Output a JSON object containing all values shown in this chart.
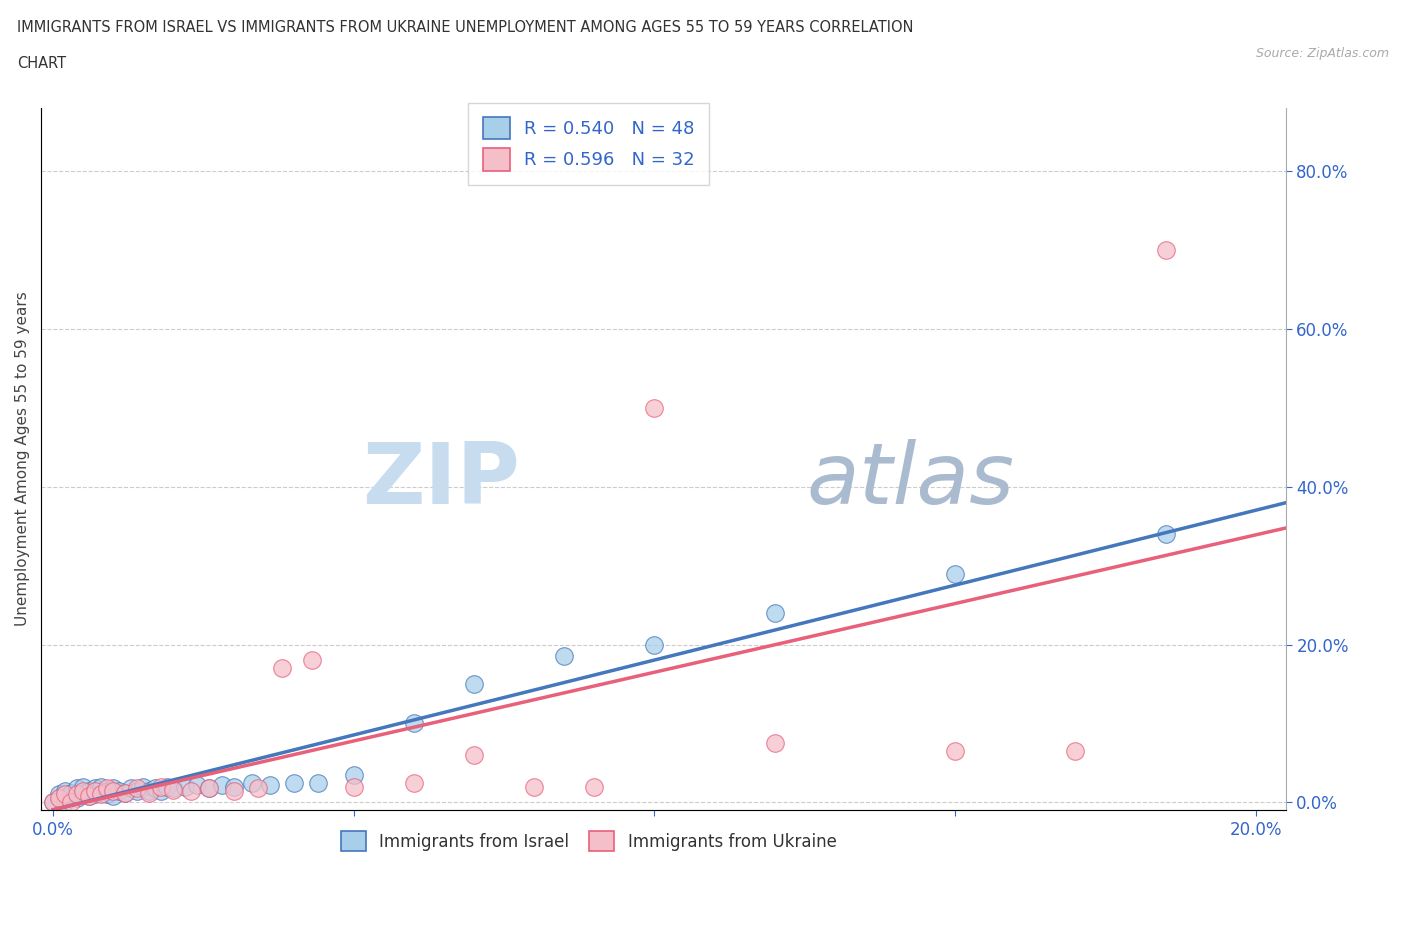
{
  "title_line1": "IMMIGRANTS FROM ISRAEL VS IMMIGRANTS FROM UKRAINE UNEMPLOYMENT AMONG AGES 55 TO 59 YEARS CORRELATION",
  "title_line2": "CHART",
  "source_text": "Source: ZipAtlas.com",
  "ylabel": "Unemployment Among Ages 55 to 59 years",
  "xlim": [
    -0.002,
    0.205
  ],
  "ylim": [
    -0.01,
    0.88
  ],
  "color_israel": "#A8CFEA",
  "color_ukraine": "#F5BFCA",
  "color_line_israel": "#4477BB",
  "color_line_ukraine": "#E8607A",
  "color_text_blue": "#3366CC",
  "color_text_pink": "#CC3366",
  "r_israel": 0.54,
  "n_israel": 48,
  "r_ukraine": 0.596,
  "n_ukraine": 32,
  "watermark_zip": "ZIP",
  "watermark_atlas": "atlas",
  "israel_x": [
    0.0,
    0.001,
    0.001,
    0.002,
    0.002,
    0.003,
    0.003,
    0.004,
    0.004,
    0.005,
    0.005,
    0.006,
    0.006,
    0.007,
    0.007,
    0.008,
    0.008,
    0.009,
    0.009,
    0.01,
    0.01,
    0.011,
    0.012,
    0.013,
    0.014,
    0.015,
    0.016,
    0.017,
    0.018,
    0.019,
    0.02,
    0.022,
    0.024,
    0.026,
    0.028,
    0.03,
    0.033,
    0.036,
    0.04,
    0.044,
    0.05,
    0.06,
    0.07,
    0.085,
    0.1,
    0.12,
    0.15,
    0.185
  ],
  "israel_y": [
    0.0,
    0.005,
    0.01,
    0.0,
    0.015,
    0.008,
    0.012,
    0.005,
    0.018,
    0.01,
    0.02,
    0.008,
    0.015,
    0.01,
    0.018,
    0.012,
    0.02,
    0.01,
    0.015,
    0.008,
    0.018,
    0.015,
    0.012,
    0.018,
    0.015,
    0.02,
    0.015,
    0.018,
    0.015,
    0.02,
    0.018,
    0.02,
    0.022,
    0.018,
    0.022,
    0.02,
    0.025,
    0.022,
    0.025,
    0.025,
    0.035,
    0.1,
    0.15,
    0.185,
    0.2,
    0.24,
    0.29,
    0.34
  ],
  "ukraine_x": [
    0.0,
    0.001,
    0.002,
    0.003,
    0.004,
    0.005,
    0.006,
    0.007,
    0.008,
    0.009,
    0.01,
    0.012,
    0.014,
    0.016,
    0.018,
    0.02,
    0.023,
    0.026,
    0.03,
    0.034,
    0.038,
    0.043,
    0.05,
    0.06,
    0.07,
    0.08,
    0.09,
    0.1,
    0.12,
    0.15,
    0.17,
    0.185
  ],
  "ukraine_y": [
    0.0,
    0.005,
    0.01,
    0.0,
    0.01,
    0.015,
    0.008,
    0.015,
    0.01,
    0.018,
    0.015,
    0.012,
    0.018,
    0.012,
    0.02,
    0.016,
    0.015,
    0.018,
    0.015,
    0.018,
    0.17,
    0.18,
    0.02,
    0.025,
    0.06,
    0.02,
    0.02,
    0.5,
    0.075,
    0.065,
    0.065,
    0.7
  ]
}
